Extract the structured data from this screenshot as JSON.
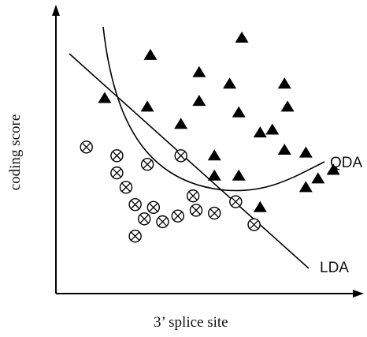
{
  "chart_data": {
    "type": "scatter",
    "xlabel": "3’ splice site",
    "ylabel": "coding score",
    "xlim": [
      0,
      100
    ],
    "ylim": [
      0,
      100
    ],
    "grid": false,
    "series": [
      {
        "marker": "triangle",
        "points": [
          [
            31,
            83
          ],
          [
            47,
            77
          ],
          [
            61,
            89
          ],
          [
            16,
            68
          ],
          [
            30,
            65
          ],
          [
            47,
            67
          ],
          [
            75,
            73
          ],
          [
            57,
            73
          ],
          [
            60,
            63
          ],
          [
            76,
            65
          ],
          [
            41,
            59
          ],
          [
            67,
            56
          ],
          [
            75,
            50
          ],
          [
            82,
            49
          ],
          [
            91,
            43
          ],
          [
            52,
            41
          ],
          [
            86,
            40
          ],
          [
            52,
            48
          ],
          [
            82,
            37
          ],
          [
            60,
            41
          ],
          [
            71,
            57
          ],
          [
            67,
            30
          ]
        ]
      },
      {
        "marker": "circle-x",
        "points": [
          [
            10,
            51
          ],
          [
            20,
            42
          ],
          [
            20,
            48
          ],
          [
            30,
            45
          ],
          [
            23,
            37
          ],
          [
            41,
            48
          ],
          [
            26,
            31
          ],
          [
            32,
            30
          ],
          [
            29,
            26
          ],
          [
            40,
            27
          ],
          [
            26,
            20
          ],
          [
            46,
            29
          ],
          [
            45,
            34
          ],
          [
            52,
            28
          ],
          [
            59,
            32
          ],
          [
            65,
            24
          ],
          [
            35,
            25
          ]
        ]
      }
    ],
    "curves": [
      {
        "label": "QDA",
        "type": "curve"
      },
      {
        "label": "LDA",
        "type": "line"
      }
    ]
  }
}
